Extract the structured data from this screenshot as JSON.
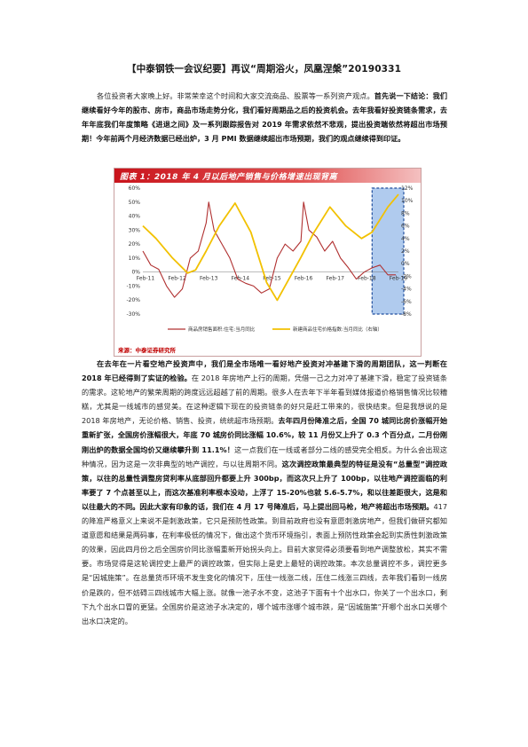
{
  "doc": {
    "title": "【中泰钢铁一会议纪要】再议“周期浴火，凤凰涅槃”20190331",
    "para1": [
      {
        "t": "各位投资者大家晚上好。非常荣幸这个时间和大家交流商品、股票等一系列资产观点。",
        "b": false
      },
      {
        "t": "首先说一下结论：我们继续看好今年的股市、房市，商品市场走势分化，我们看好周期品之后的投资机会。去年我看好投资链条需求，去年年底我们年度策略《进退之间》及一系列跟踪报告对 2019 年需求依然不悲观，提出投资端依然将超出市场预期！今年前两个月经济数据已经出炉，3 月 PMI 数据继续超出市场预期，我们的观点继续得到印证。",
        "b": true
      }
    ],
    "para2": [
      {
        "t": "在去年在一片看空地产投资声中，我们是全市场唯一看好地产投资对冲基建下滑的周期团队，这一判断在 2018 年已经得到了实证的检验。",
        "b": true
      },
      {
        "t": "在 2018 年房地产上行的周期，凭借一己之力对冲了基建下滑，稳定了投资链条的需求。这轮地产的繁荣周期的跨度远远超越了前的周期。很多人在去年下半年看到媒体报道价格销售情况比较糟糕，尤其是一线城市的感觉美。在这种逻辑下现在的投资链条的好只是赶工带来的，很快结束。但是我想说的是 2018 年房地产，无论价格、销售、投资，统统超市场预期。",
        "b": false
      },
      {
        "t": "去年四月份降准之后，全国 70 城同比房价涨幅开始重新扩张，全国房价涨幅很大，年底 70 城房价同比涨幅 10.6%，较 11 月份又上升了 0.3 个百分点，二月份刚刚出炉的数据全国均价又继续攀升到 11.1%！",
        "b": true
      },
      {
        "t": "这一点我们在一线或者部分二线的感受完全相反。为什么会出现这种情况，因为这是一次非典型的地产调控，与以往周期不同。",
        "b": false
      },
      {
        "t": "这次调控政策最典型的特征是没有“总量型”调控政策，以往的总量性调整房贷利率从底部回升都要上升 300bp，而这次只上升了 100bp，以往地产调控面临的利率要了 7 个点甚至以上，而这次基准利率根本没动，上浮了 15-20%也就 5.6-5.7%，和以往差距很大，这是和以往最大的不同。因此大家有印象的话，我们在 4 月 17 号降准后，马上提出回马枪，地产将超出市场预期。",
        "b": true
      },
      {
        "t": "417 的降准严格意义上来说不是刺激政策，它只是预防性政策。到目前政府也没有意愿刺激房地产，但我们做研究都知道意愿和结果是两码事，在利率极低的情况下，做出这个货币环境指引，表面上预防性政策会起到实质性刺激政策的效果，因此四月份之后全国房价同比涨幅重新开始拐头向上。目前大家觉得必须要看到地产调整放松，其实不需要。市场觉得是这轮调控史上最严的调控政策，但实际上是史上最轻的调控政策。本次总量调控不多，调控更多是“因城施策”。在总量货币环境不发生变化的情况下，压住一线涨二线，压住二线涨三四线，去年我们看到一线房价是跌的，但不妨碍三四线城市大幅上涨。就像一池子水不变，这池子下面有十个出水口，你关了一个出水口，剩下九个出水口冒的更猛。全国房价是这池子水决定的，哪个城市涨哪个城市跌，是“因城施策”开哪个出水口关哪个出水口决定的。",
        "b": false
      }
    ]
  },
  "chart": {
    "header": "图表 1：2018 年 4 月以后地产销售与价格增速出现背离",
    "source": "来源：中泰证券研究所",
    "legend_sales": "商品房销售面积:住宅:当月同比",
    "legend_price": "新建商品住宅价格指数:当月同比（右轴）",
    "colors": {
      "sales": "#b03030",
      "price": "#f2c100",
      "box": "#1f4e9e",
      "box_fill": "#6fa0e0"
    }
  },
  "chart_data": {
    "type": "line",
    "title": "2018 年 4 月以后地产销售与价格增速出现背离",
    "x_tick_labels": [
      "Feb-11",
      "Feb-12",
      "Feb-13",
      "Feb-14",
      "Feb-15",
      "Feb-16",
      "Feb-17",
      "Feb-18",
      "Feb-19"
    ],
    "x_range": [
      "2011-01",
      "2019-02"
    ],
    "y_left_range": [
      -30,
      60
    ],
    "y_left_ticks": [
      "-30%",
      "-20%",
      "-10%",
      "0%",
      "10%",
      "20%",
      "30%",
      "40%",
      "50%",
      "60%"
    ],
    "y_right_range": [
      -8,
      12
    ],
    "y_right_ticks": [
      "-8%",
      "-6%",
      "-4%",
      "-2%",
      "0%",
      "2%",
      "4%",
      "6%",
      "8%",
      "10%",
      "12%"
    ],
    "series": [
      {
        "name": "商品房销售面积:住宅:当月同比",
        "axis": "left",
        "x": [
          "2011-01",
          "2011-04",
          "2011-07",
          "2011-10",
          "2012-01",
          "2012-04",
          "2012-07",
          "2012-10",
          "2013-01",
          "2013-02",
          "2013-04",
          "2013-07",
          "2013-10",
          "2014-01",
          "2014-04",
          "2014-07",
          "2014-10",
          "2015-01",
          "2015-04",
          "2015-07",
          "2015-10",
          "2016-01",
          "2016-02",
          "2016-04",
          "2016-07",
          "2016-10",
          "2017-01",
          "2017-04",
          "2017-07",
          "2017-10",
          "2018-01",
          "2018-04",
          "2018-07",
          "2018-10",
          "2019-01"
        ],
        "y": [
          15,
          5,
          2,
          -10,
          -18,
          -12,
          10,
          15,
          35,
          50,
          30,
          20,
          10,
          -5,
          -8,
          -10,
          -15,
          -12,
          10,
          20,
          15,
          22,
          50,
          30,
          25,
          15,
          22,
          10,
          3,
          -5,
          0,
          3,
          5,
          -2,
          -2
        ]
      },
      {
        "name": "新建商品住宅价格指数:当月同比（右轴）",
        "axis": "right",
        "x": [
          "2011-01",
          "2011-06",
          "2011-12",
          "2012-06",
          "2012-09",
          "2013-01",
          "2013-06",
          "2013-12",
          "2014-06",
          "2014-12",
          "2015-04",
          "2015-09",
          "2016-01",
          "2016-06",
          "2016-12",
          "2017-06",
          "2017-12",
          "2018-04",
          "2018-10",
          "2019-02"
        ],
        "y": [
          6,
          4,
          1,
          -1.5,
          -1,
          2,
          6,
          9.6,
          5,
          -3,
          -5.8,
          -2,
          1,
          5,
          9,
          6,
          4,
          5,
          9,
          11
        ]
      }
    ],
    "shaded_region": {
      "from": "2018-04",
      "to": "2019-02"
    },
    "grid": false,
    "legend_position": "bottom"
  }
}
